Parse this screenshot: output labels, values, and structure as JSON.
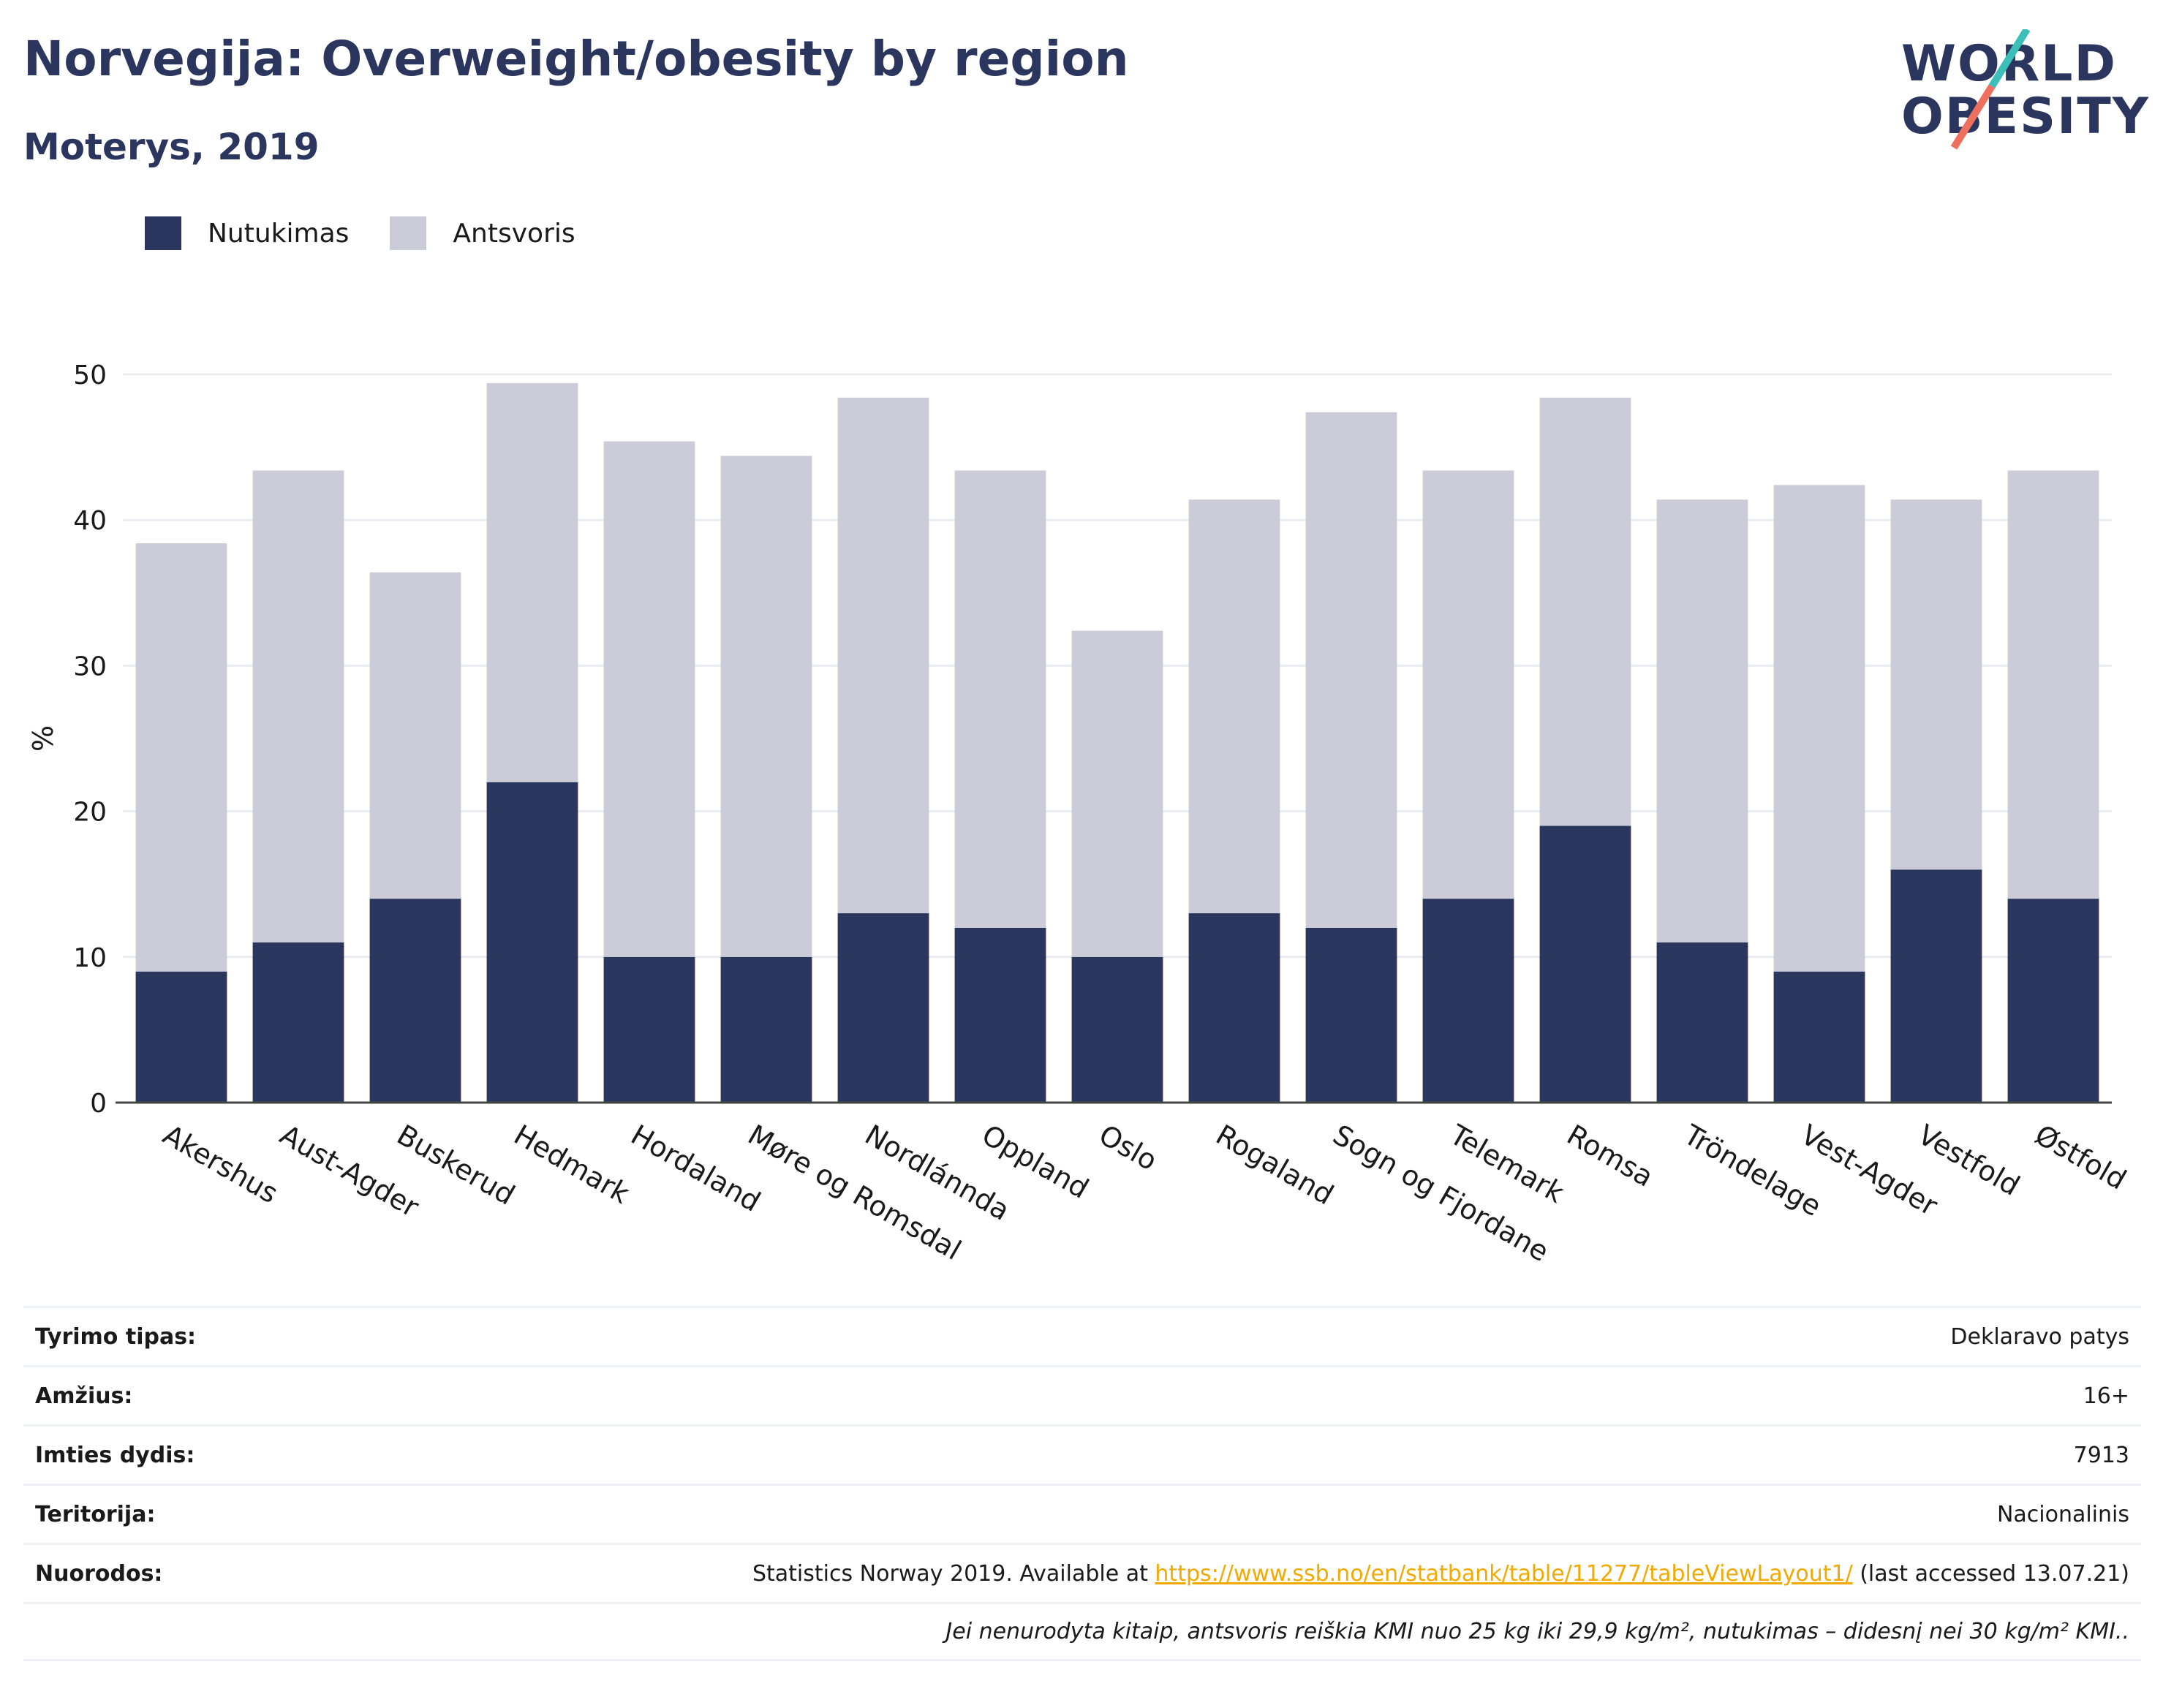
{
  "title": "Norvegija: Overweight/obesity by region",
  "subtitle": "Moterys, 2019",
  "logo": {
    "line1": "WORLD",
    "line2": "OBESITY"
  },
  "colors": {
    "obesity": "#2b365f",
    "overweight": "#cbccd8",
    "accent_teal": "#3bbfb8",
    "accent_coral": "#ef6f5e",
    "link": "#f2a900"
  },
  "chart_data": {
    "type": "bar",
    "stacked": true,
    "ylabel": "%",
    "xlabel": "",
    "ylim": [
      0,
      50
    ],
    "yticks": [
      0,
      10,
      20,
      30,
      40,
      50
    ],
    "grid": true,
    "legend_position": "top-left",
    "categories": [
      "Akershus",
      "Aust-Agder",
      "Buskerud",
      "Hedmark",
      "Hordaland",
      "Møre og Romsdal",
      "Nordlánnda",
      "Oppland",
      "Oslo",
      "Rogaland",
      "Sogn og Fjordane",
      "Telemark",
      "Romsa",
      "Tröndelage",
      "Vest-Agder",
      "Vestfold",
      "Østfold"
    ],
    "series": [
      {
        "name": "Nutukimas",
        "color": "#2b365f",
        "values": [
          9,
          11,
          14,
          22,
          10,
          10,
          13,
          12,
          10,
          13,
          12,
          14,
          19,
          11,
          9,
          16,
          14
        ]
      },
      {
        "name": "Antsvoris",
        "color": "#cbccd8",
        "values": [
          29.4,
          32.4,
          22.4,
          27.4,
          35.4,
          34.4,
          35.4,
          31.4,
          22.4,
          28.4,
          35.4,
          29.4,
          29.4,
          30.4,
          33.4,
          25.4,
          29.4
        ]
      }
    ]
  },
  "meta": {
    "rows": [
      {
        "key": "Tyrimo tipas:",
        "value": "Deklaravo patys"
      },
      {
        "key": "Amžius:",
        "value": "16+"
      },
      {
        "key": "Imties dydis:",
        "value": "7913"
      },
      {
        "key": "Teritorija:",
        "value": "Nacionalinis"
      }
    ],
    "source": {
      "key": "Nuorodos:",
      "prefix": "Statistics Norway 2019. Available at ",
      "link": "https://www.ssb.no/en/statbank/table/11277/tableViewLayout1/",
      "suffix": " (last accessed 13.07.21)"
    },
    "note": "Jei nenurodyta kitaip, antsvoris reiškia KMI nuo 25 kg iki 29,9 kg/m², nutukimas – didesnį nei 30 kg/m² KMI.."
  }
}
